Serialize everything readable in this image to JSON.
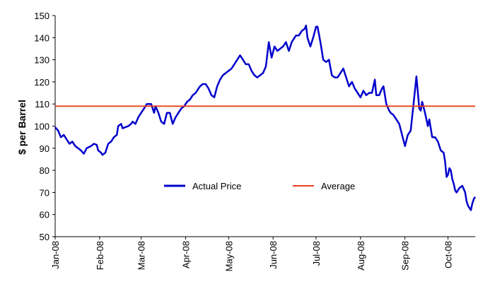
{
  "chart_data": {
    "type": "line",
    "y_label": "$ per Barrel",
    "series": [
      {
        "name": "Actual Price",
        "color": "#0000cc",
        "x": [
          0,
          2,
          4,
          6,
          8,
          10,
          12,
          14,
          16,
          18,
          20,
          22,
          25,
          27,
          29,
          30,
          32,
          33,
          35,
          37,
          39,
          41,
          43,
          44,
          46,
          47,
          49,
          51,
          53,
          54,
          56,
          58,
          60,
          62,
          64,
          67,
          69,
          70,
          72,
          74,
          76,
          78,
          80,
          82,
          84,
          86,
          88,
          90,
          92,
          94,
          96,
          98,
          100,
          101,
          103,
          105,
          107,
          109,
          111,
          113,
          115,
          117,
          119,
          121,
          123,
          125,
          127,
          129,
          131,
          133,
          135,
          137,
          139,
          141,
          143,
          145,
          147,
          149,
          151,
          153,
          155,
          157,
          159,
          161,
          163,
          165,
          167,
          168,
          170,
          172,
          174,
          175,
          176,
          178,
          180,
          182,
          183,
          185,
          187,
          189,
          191,
          193,
          195,
          197,
          199,
          201,
          203,
          205,
          207,
          209,
          211,
          213,
          215,
          217,
          219,
          221,
          223,
          224,
          226,
          228,
          229,
          231,
          233,
          234,
          236,
          238,
          240,
          242,
          244,
          246,
          248,
          249,
          250,
          252,
          254,
          255,
          256,
          258,
          260,
          261,
          263,
          265,
          267,
          269,
          271,
          272,
          273,
          274,
          275,
          276,
          277,
          278,
          279,
          280,
          282,
          284,
          286,
          287,
          288,
          290,
          291,
          292,
          293
        ],
        "values": [
          99.5,
          98,
          95,
          96,
          94,
          92,
          93,
          91,
          90,
          89,
          87.5,
          90,
          91,
          92,
          91.5,
          89,
          88,
          87,
          88,
          92,
          93,
          95,
          96,
          100,
          101,
          99,
          99.5,
          100,
          101,
          102,
          101,
          104,
          106,
          108,
          110,
          110,
          106,
          109,
          106,
          102,
          101,
          106,
          106,
          101,
          104,
          106,
          108,
          109,
          111,
          112,
          114,
          115,
          117,
          118,
          119,
          119,
          117,
          114,
          113,
          118,
          121,
          123,
          124,
          125,
          126,
          128,
          130,
          132,
          130,
          128,
          128,
          125,
          123,
          122,
          123,
          124,
          127,
          138,
          131,
          136,
          134,
          135,
          136,
          138,
          134,
          138,
          140,
          141,
          141,
          143,
          144,
          145.5,
          140,
          136,
          140,
          145,
          145,
          138,
          130,
          129,
          130,
          123,
          122,
          122,
          124,
          126,
          122,
          118,
          120,
          117,
          115,
          113,
          116,
          114,
          115,
          115,
          121,
          114,
          114,
          117,
          118,
          110,
          107,
          106,
          105,
          103,
          101,
          96,
          91,
          96,
          98,
          104,
          110,
          122.5,
          108,
          107,
          111,
          106,
          100,
          103,
          95,
          95,
          93,
          89,
          88,
          84,
          77,
          78,
          81,
          80,
          76,
          74,
          71,
          70,
          72,
          73,
          70,
          66,
          64,
          62,
          65,
          67,
          68
        ]
      },
      {
        "name": "Average",
        "color": "#e8401c",
        "x": [
          0,
          293
        ],
        "values": [
          109,
          109
        ]
      }
    ],
    "xlim": [
      0,
      293
    ],
    "xticks": [
      {
        "value": 0,
        "label": "Jan-08"
      },
      {
        "value": 31,
        "label": "Feb-08"
      },
      {
        "value": 60,
        "label": "Mar-08"
      },
      {
        "value": 91,
        "label": "Apr-08"
      },
      {
        "value": 121,
        "label": "May-08"
      },
      {
        "value": 152,
        "label": "Jun-08"
      },
      {
        "value": 182,
        "label": "Jul-08"
      },
      {
        "value": 213,
        "label": "Aug-08"
      },
      {
        "value": 244,
        "label": "Sep-08"
      },
      {
        "value": 274,
        "label": "Oct-08"
      }
    ],
    "ylim": [
      50,
      150
    ],
    "yticks": [
      50,
      60,
      70,
      80,
      90,
      100,
      110,
      120,
      130,
      140,
      150
    ],
    "grid": false
  }
}
